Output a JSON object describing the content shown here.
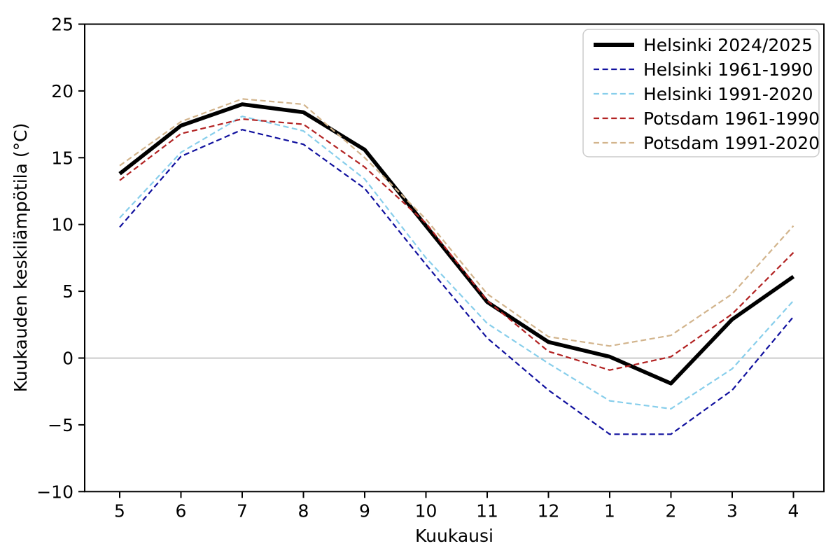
{
  "chart_data": {
    "type": "line",
    "title": "",
    "xlabel": "Kuukausi",
    "ylabel": "Kuukauden keskilämpötila (°C)",
    "categories": [
      "5",
      "6",
      "7",
      "8",
      "9",
      "10",
      "11",
      "12",
      "1",
      "2",
      "3",
      "4"
    ],
    "yticks": [
      25,
      20,
      15,
      10,
      5,
      0,
      -5,
      -10
    ],
    "ylim": [
      -10,
      25
    ],
    "grid": "horizontal zero line only",
    "zero_line_color": "#a6a6a6",
    "axis_color": "#000000",
    "background_color": "#ffffff",
    "legend_position": "upper right",
    "legend_border_color": "#cccccc",
    "series": [
      {
        "name": "Helsinki 2024/2025",
        "color": "#000000",
        "style": "solid",
        "width": 5.5,
        "values": [
          13.8,
          17.4,
          19.0,
          18.4,
          15.6,
          9.9,
          4.2,
          1.2,
          0.1,
          -1.9,
          2.9,
          6.1
        ]
      },
      {
        "name": "Helsinki 1961-1990",
        "color": "#10109e",
        "style": "dashed",
        "width": 2.2,
        "values": [
          9.8,
          15.1,
          17.1,
          16.0,
          12.7,
          7.0,
          1.5,
          -2.4,
          -5.7,
          -5.7,
          -2.4,
          3.1
        ]
      },
      {
        "name": "Helsinki 1991-2020",
        "color": "#87ceeb",
        "style": "dashed",
        "width": 2.2,
        "values": [
          10.5,
          15.4,
          18.1,
          17.0,
          13.4,
          7.5,
          2.6,
          -0.4,
          -3.2,
          -3.8,
          -0.8,
          4.3
        ]
      },
      {
        "name": "Potsdam 1961-1990",
        "color": "#b22222",
        "style": "dashed",
        "width": 2.2,
        "values": [
          13.3,
          16.8,
          17.9,
          17.5,
          14.3,
          10.1,
          4.3,
          0.5,
          -0.9,
          0.1,
          3.3,
          7.9
        ]
      },
      {
        "name": "Potsdam 1991-2020",
        "color": "#d2b48c",
        "style": "dashed",
        "width": 2.2,
        "values": [
          14.4,
          17.7,
          19.4,
          19.0,
          15.0,
          10.4,
          4.8,
          1.6,
          0.9,
          1.7,
          4.8,
          9.9
        ]
      }
    ]
  }
}
